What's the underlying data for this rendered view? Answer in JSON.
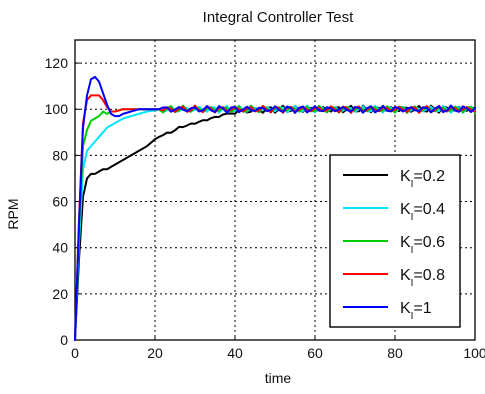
{
  "chart_data": {
    "type": "line",
    "title": "Integral Controller Test",
    "xlabel": "time",
    "ylabel": "RPM",
    "xlim": [
      0,
      100
    ],
    "ylim": [
      0,
      130
    ],
    "xticks": [
      "0",
      "20",
      "40",
      "60",
      "80",
      "100"
    ],
    "yticks": [
      "0",
      "20",
      "40",
      "60",
      "80",
      "100",
      "120"
    ],
    "grid": true,
    "legend_position": "bottom-right",
    "series": [
      {
        "name": "KI=0.2",
        "legend_main": "K",
        "legend_sub": "I",
        "legend_value": "=0.2",
        "color": "#000000",
        "x": [
          0,
          1,
          2,
          3,
          4,
          5,
          6,
          7,
          8,
          10,
          12,
          14,
          16,
          18,
          20,
          22,
          24,
          26,
          28,
          30,
          32,
          34,
          36,
          38,
          40,
          45,
          50,
          55,
          60,
          65,
          70,
          75,
          80,
          85,
          90,
          95,
          100
        ],
        "values": [
          0,
          35,
          62,
          70,
          72,
          72,
          73,
          74,
          74,
          76,
          78,
          80,
          82,
          84,
          87,
          89,
          90,
          92,
          93,
          94,
          95,
          96,
          97,
          98,
          99,
          99.5,
          100,
          100,
          100,
          100,
          100,
          100,
          100,
          100,
          100,
          100,
          100
        ]
      },
      {
        "name": "KI=0.4",
        "legend_main": "K",
        "legend_sub": "I",
        "legend_value": "=0.4",
        "color": "#00e5ff",
        "x": [
          0,
          1,
          2,
          3,
          4,
          5,
          6,
          7,
          8,
          9,
          10,
          12,
          14,
          16,
          18,
          20,
          22,
          25,
          30,
          40,
          50,
          60,
          70,
          80,
          90,
          100
        ],
        "values": [
          0,
          42,
          74,
          82,
          84,
          86,
          88,
          90,
          92,
          93,
          94,
          96,
          97,
          98,
          99,
          99.5,
          100,
          100,
          100,
          100,
          100,
          100,
          100,
          100,
          100,
          100
        ]
      },
      {
        "name": "KI=0.6",
        "legend_main": "K",
        "legend_sub": "I",
        "legend_value": "=0.6",
        "color": "#00cc00",
        "x": [
          0,
          1,
          2,
          3,
          4,
          5,
          6,
          7,
          8,
          9,
          10,
          12,
          14,
          16,
          18,
          20,
          25,
          30,
          40,
          50,
          60,
          70,
          80,
          90,
          100
        ],
        "values": [
          0,
          48,
          84,
          91,
          95,
          96,
          97,
          99,
          98,
          99,
          99,
          100,
          100,
          100,
          100,
          100,
          100,
          100,
          100,
          100,
          100,
          100,
          100,
          100,
          100
        ]
      },
      {
        "name": "KI=0.8",
        "legend_main": "K",
        "legend_sub": "I",
        "legend_value": "=0.8",
        "color": "#ff0000",
        "x": [
          0,
          1,
          2,
          3,
          4,
          5,
          6,
          7,
          8,
          9,
          10,
          12,
          14,
          16,
          18,
          20,
          25,
          30,
          40,
          50,
          60,
          70,
          80,
          90,
          100
        ],
        "values": [
          0,
          52,
          94,
          104,
          106,
          106,
          106,
          104,
          101,
          99,
          99,
          100,
          100,
          100,
          100,
          100,
          100,
          100,
          100,
          100,
          100,
          100,
          100,
          100,
          100
        ]
      },
      {
        "name": "KI=1",
        "legend_main": "K",
        "legend_sub": "I",
        "legend_value": "=1",
        "color": "#0000ff",
        "x": [
          0,
          1,
          2,
          3,
          4,
          5,
          6,
          7,
          8,
          9,
          10,
          11,
          12,
          14,
          16,
          18,
          20,
          25,
          30,
          40,
          50,
          60,
          70,
          80,
          90,
          100
        ],
        "values": [
          0,
          50,
          92,
          106,
          113,
          114,
          112,
          107,
          102,
          98,
          97,
          97,
          98,
          99,
          100,
          100,
          100,
          100,
          100,
          100,
          100,
          100,
          100,
          100,
          100,
          100
        ]
      }
    ]
  }
}
